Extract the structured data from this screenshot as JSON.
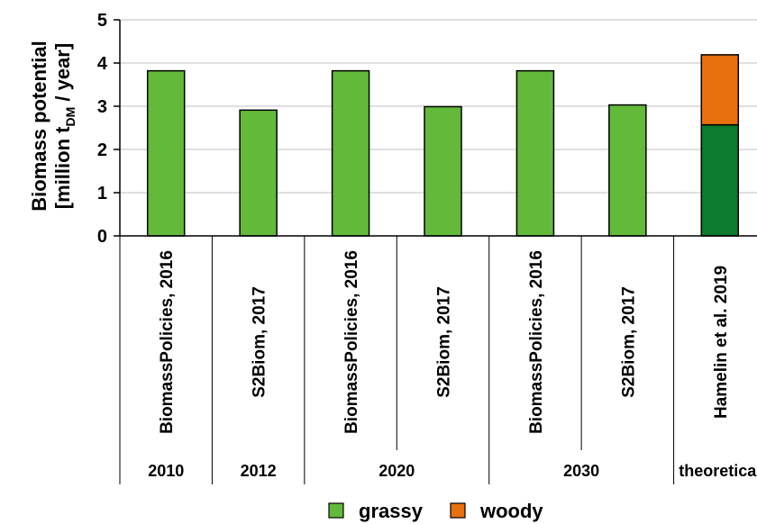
{
  "chart_data": {
    "type": "bar",
    "stacked": true,
    "ylabel_line1": "Biomass potential",
    "ylabel_line2_prefix": "[million t",
    "ylabel_line2_sub": "DM",
    "ylabel_line2_suffix": " / year]",
    "ylim": [
      0,
      5
    ],
    "yticks": [
      0,
      1,
      2,
      3,
      4,
      5
    ],
    "grid": true,
    "categories": [
      "BiomassPolicies, 2016",
      "S2Biom, 2017",
      "BiomassPolicies, 2016",
      "S2Biom, 2017",
      "BiomassPolicies, 2016",
      "S2Biom, 2017",
      "Hamelin et al. 2019"
    ],
    "groups": [
      {
        "label": "2010",
        "span": 1
      },
      {
        "label": "2012",
        "span": 1
      },
      {
        "label": "2020",
        "span": 2
      },
      {
        "label": "2030",
        "span": 2
      },
      {
        "label": "theoretical",
        "span": 1
      }
    ],
    "series": [
      {
        "name": "grassy",
        "color": "#63b93a",
        "values": [
          3.82,
          2.91,
          3.82,
          2.99,
          3.82,
          3.03,
          0
        ]
      },
      {
        "name": "woody",
        "color": "#e8700f",
        "values": [
          0,
          0,
          0,
          0,
          0,
          0,
          1.62
        ]
      }
    ],
    "extra_segments": [
      {
        "category_index": 6,
        "base": 0,
        "value": 2.57,
        "color": "#0c7a2f"
      }
    ],
    "legend": {
      "position": "bottom",
      "entries": [
        {
          "label": "grassy",
          "color": "#63b93a"
        },
        {
          "label": "woody",
          "color": "#e8700f"
        }
      ]
    }
  }
}
